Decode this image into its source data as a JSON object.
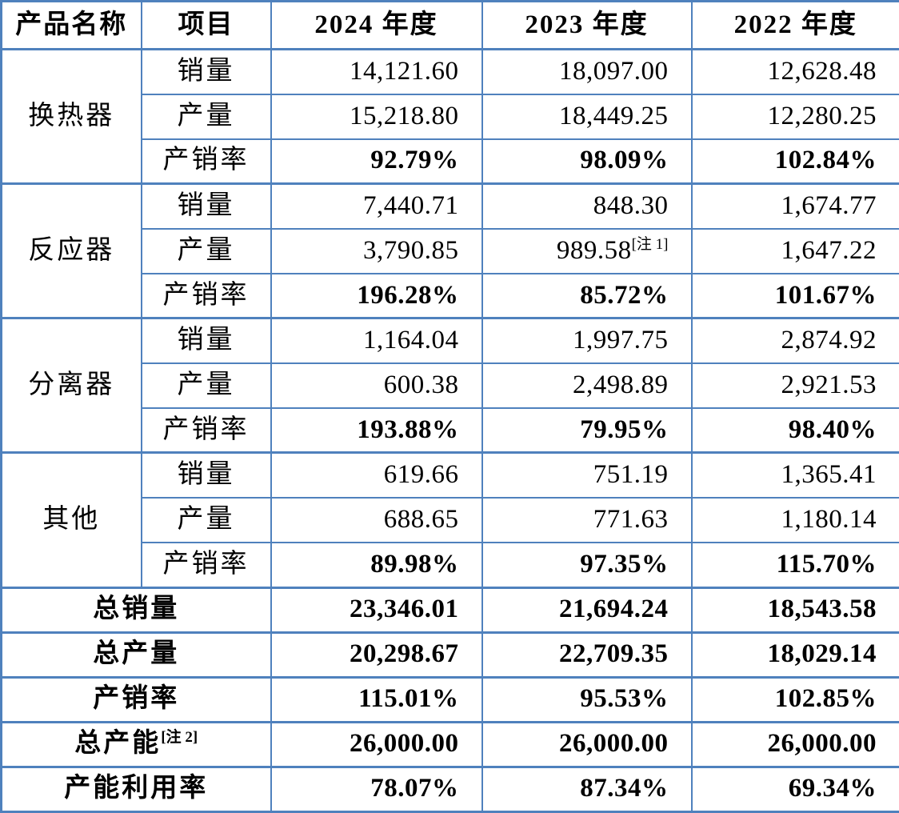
{
  "header": {
    "cols": [
      "产品名称",
      "项目",
      "2024 年度",
      "2023 年度",
      "2022 年度"
    ]
  },
  "labels": {
    "sales": "销量",
    "production": "产量",
    "ratio": "产销率"
  },
  "groups": [
    {
      "name": "换热器",
      "sales": [
        "14,121.60",
        "18,097.00",
        "12,628.48"
      ],
      "production": [
        "15,218.80",
        "18,449.25",
        "12,280.25"
      ],
      "ratio": [
        "92.79%",
        "98.09%",
        "102.84%"
      ]
    },
    {
      "name": "反应器",
      "sales": [
        "7,440.71",
        "848.30",
        "1,674.77"
      ],
      "production": [
        "3,790.85",
        "989.58",
        "1,647.22"
      ],
      "production_note": "[注 1]",
      "ratio": [
        "196.28%",
        "85.72%",
        "101.67%"
      ]
    },
    {
      "name": "分离器",
      "sales": [
        "1,164.04",
        "1,997.75",
        "2,874.92"
      ],
      "production": [
        "600.38",
        "2,498.89",
        "2,921.53"
      ],
      "ratio": [
        "193.88%",
        "79.95%",
        "98.40%"
      ]
    },
    {
      "name": "其他",
      "sales": [
        "619.66",
        "751.19",
        "1,365.41"
      ],
      "production": [
        "688.65",
        "771.63",
        "1,180.14"
      ],
      "ratio": [
        "89.98%",
        "97.35%",
        "115.70%"
      ]
    }
  ],
  "summary": [
    {
      "label": "总销量",
      "values": [
        "23,346.01",
        "21,694.24",
        "18,543.58"
      ]
    },
    {
      "label": "总产量",
      "values": [
        "20,298.67",
        "22,709.35",
        "18,029.14"
      ]
    },
    {
      "label": "产销率",
      "values": [
        "115.01%",
        "95.53%",
        "102.85%"
      ]
    },
    {
      "label": "总产能",
      "label_note": "[注 2]",
      "values": [
        "26,000.00",
        "26,000.00",
        "26,000.00"
      ]
    },
    {
      "label": "产能利用率",
      "values": [
        "78.07%",
        "87.34%",
        "69.34%"
      ]
    }
  ],
  "colors": {
    "border": "#4F81BD",
    "text": "#000000",
    "background": "#FFFFFF"
  }
}
